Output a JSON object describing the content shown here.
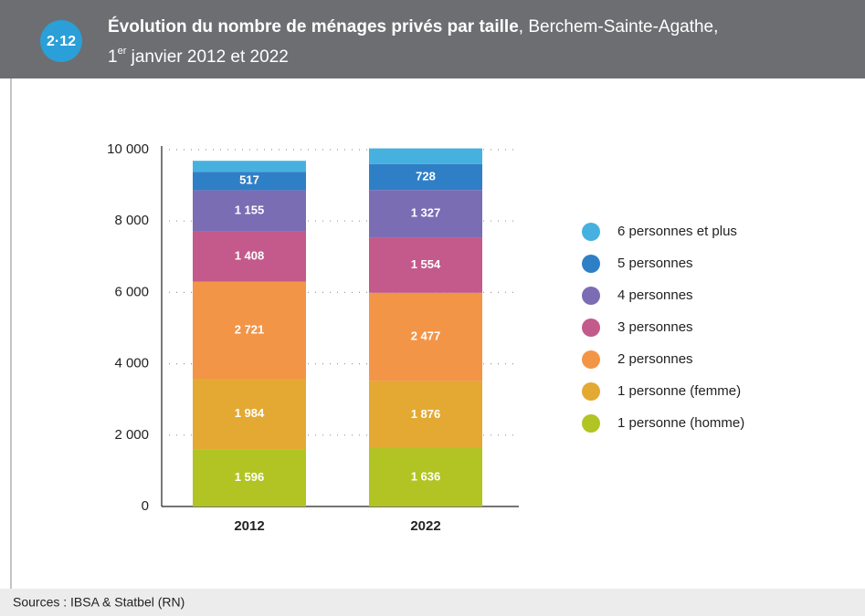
{
  "chart_data": {
    "type": "stacked_bar",
    "figure_number": "2·12",
    "title": "Évolution du nombre de ménages privés par taille",
    "title_suffix": ", Berchem-Sainte-Agathe,",
    "subtitle_day": "1",
    "subtitle_sup": "er",
    "subtitle_rest": " janvier 2012 et 2022",
    "source": "Sources : IBSA & Statbel (RN)",
    "categories": [
      "2012",
      "2022"
    ],
    "series": [
      {
        "name": "1 personne (homme)",
        "color": "#b1c423",
        "values": [
          1596,
          1636
        ],
        "value_labels": [
          "1 596",
          "1 636"
        ]
      },
      {
        "name": "1 personne (femme)",
        "color": "#e3a933",
        "values": [
          1984,
          1876
        ],
        "value_labels": [
          "1 984",
          "1 876"
        ]
      },
      {
        "name": "2 personnes",
        "color": "#f39547",
        "values": [
          2721,
          2477
        ],
        "value_labels": [
          "2 721",
          "2 477"
        ]
      },
      {
        "name": "3 personnes",
        "color": "#c35a8b",
        "values": [
          1408,
          1554
        ],
        "value_labels": [
          "1 408",
          "1 554"
        ]
      },
      {
        "name": "4 personnes",
        "color": "#7a6db4",
        "values": [
          1155,
          1327
        ],
        "value_labels": [
          "1 155",
          "1 327"
        ]
      },
      {
        "name": "5 personnes",
        "color": "#2f7fc7",
        "values": [
          517,
          728
        ]
      },
      {
        "name": "6 personnes et plus",
        "color": "#46b1de",
        "values": [
          307,
          438
        ]
      }
    ],
    "ylim": [
      0,
      10000
    ],
    "yticks": [
      0,
      {
        "value": 2000,
        "label": "2 000"
      },
      {
        "value": 4000,
        "label": "4 000"
      },
      {
        "value": 6000,
        "label": "6 000"
      },
      {
        "value": 8000,
        "label": "8 000"
      },
      {
        "value": 10000,
        "label": "10 000"
      }
    ],
    "grid": true
  }
}
